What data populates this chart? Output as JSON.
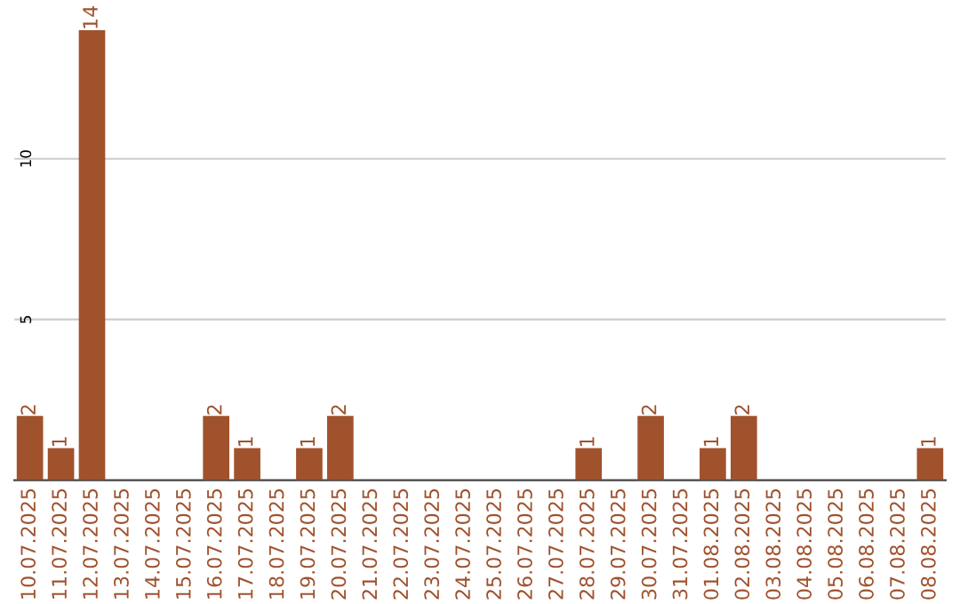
{
  "chart_data": {
    "type": "bar",
    "categories": [
      "10.07.2025",
      "11.07.2025",
      "12.07.2025",
      "13.07.2025",
      "14.07.2025",
      "15.07.2025",
      "16.07.2025",
      "17.07.2025",
      "18.07.2025",
      "19.07.2025",
      "20.07.2025",
      "21.07.2025",
      "22.07.2025",
      "23.07.2025",
      "24.07.2025",
      "25.07.2025",
      "26.07.2025",
      "27.07.2025",
      "28.07.2025",
      "29.07.2025",
      "30.07.2025",
      "31.07.2025",
      "01.08.2025",
      "02.08.2025",
      "03.08.2025",
      "04.08.2025",
      "05.08.2025",
      "06.08.2025",
      "07.08.2025",
      "08.08.2025"
    ],
    "values": [
      2,
      1,
      14,
      0,
      0,
      0,
      2,
      1,
      0,
      1,
      2,
      0,
      0,
      0,
      0,
      0,
      0,
      0,
      1,
      0,
      2,
      0,
      1,
      2,
      0,
      0,
      0,
      0,
      0,
      1
    ],
    "value_labels": [
      "2",
      "1",
      "14",
      null,
      null,
      null,
      "2",
      "1",
      null,
      "1",
      "2",
      null,
      null,
      null,
      null,
      null,
      null,
      null,
      "1",
      null,
      "2",
      null,
      "1",
      "2",
      null,
      null,
      null,
      null,
      null,
      "1"
    ],
    "color": "#a0522d",
    "ylim": [
      0,
      14
    ],
    "yticks": [
      5,
      10
    ],
    "grid": "y"
  }
}
